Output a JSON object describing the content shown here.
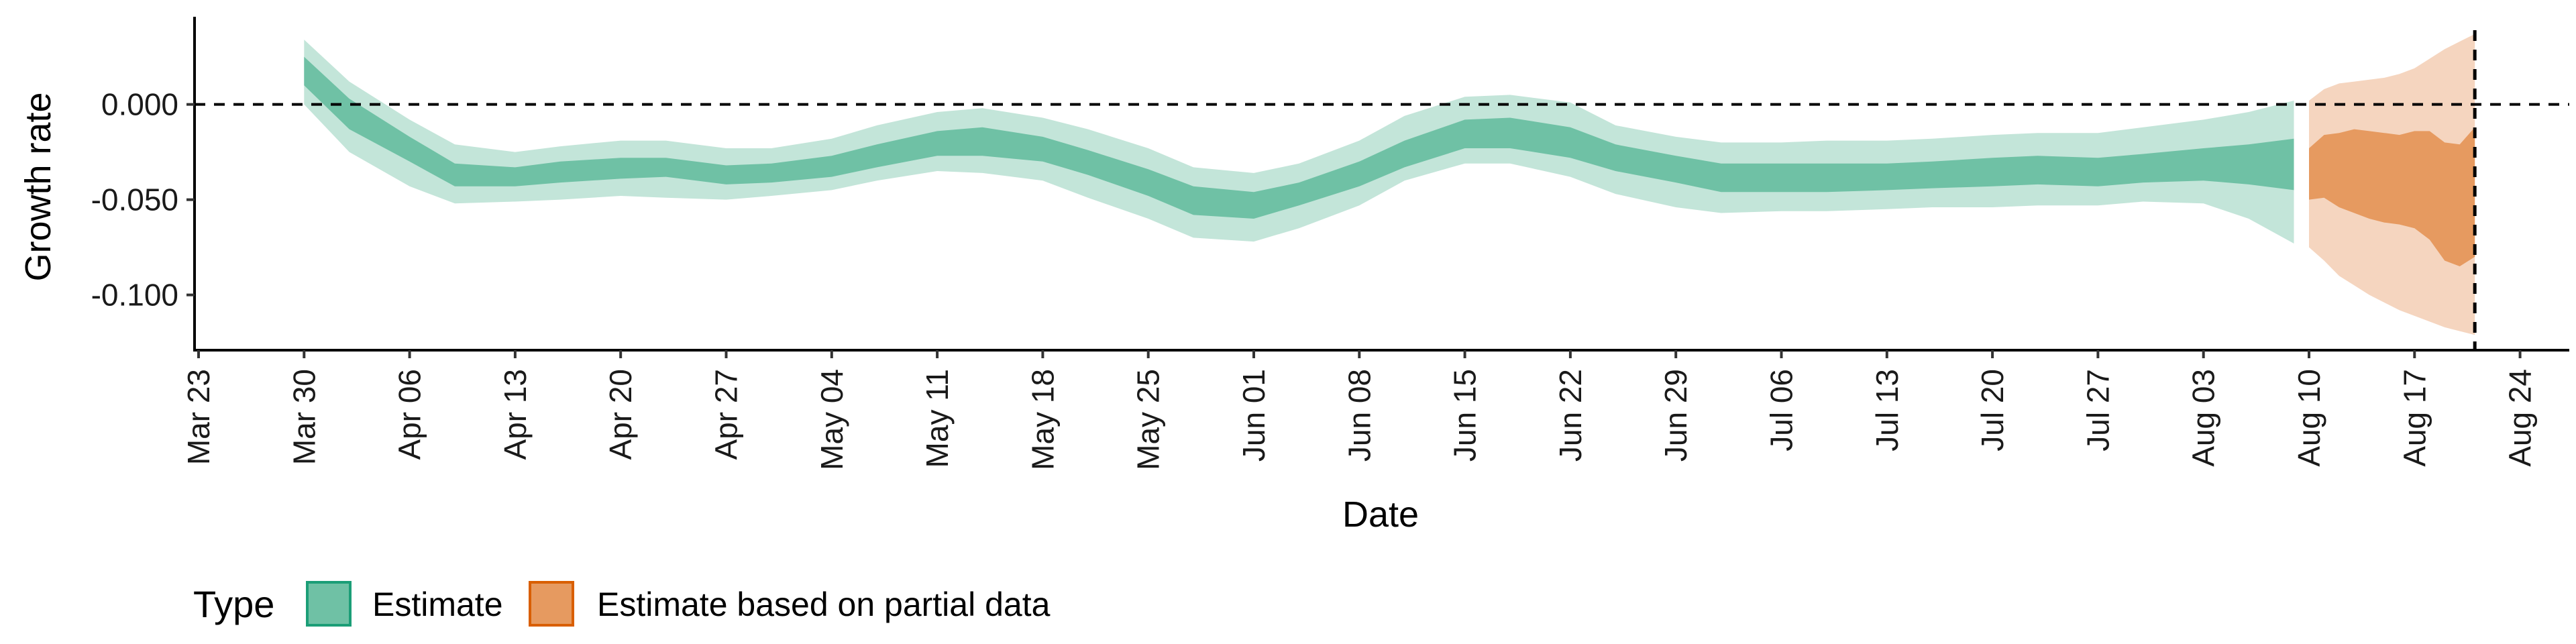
{
  "chart_data": {
    "type": "area",
    "title": "",
    "xlabel": "Date",
    "ylabel": "Growth rate",
    "x_ticks": [
      "Mar 23",
      "Mar 30",
      "Apr 06",
      "Apr 13",
      "Apr 20",
      "Apr 27",
      "May 04",
      "May 11",
      "May 18",
      "May 25",
      "Jun 01",
      "Jun 08",
      "Jun 15",
      "Jun 22",
      "Jun 29",
      "Jul 06",
      "Jul 13",
      "Jul 20",
      "Jul 27",
      "Aug 03",
      "Aug 10",
      "Aug 17",
      "Aug 24"
    ],
    "y_ticks": [
      "0.000",
      "-0.050",
      "-0.100"
    ],
    "ylim": [
      -0.129,
      0.046
    ],
    "xlim": [
      "Mar 23",
      "Aug 27"
    ],
    "reference_line_y": 0.0,
    "vertical_line_x": "Aug 21",
    "legend": {
      "title": "Type",
      "position": "bottom",
      "items": [
        {
          "label": "Estimate",
          "fill": "#6fc1a5",
          "border": "#1b9e77"
        },
        {
          "label": "Estimate based on partial data",
          "fill": "#e69a60",
          "border": "#d95f02"
        }
      ]
    },
    "colors": {
      "estimate_inner": "#6fc1a5",
      "estimate_outer": "#c3e5d9",
      "partial_inner": "#e69a60",
      "partial_outer": "#f5d5bf"
    },
    "series": [
      {
        "name": "Estimate",
        "x": [
          "Mar 30",
          "Apr 02",
          "Apr 06",
          "Apr 09",
          "Apr 13",
          "Apr 16",
          "Apr 20",
          "Apr 23",
          "Apr 27",
          "Apr 30",
          "May 04",
          "May 07",
          "May 11",
          "May 14",
          "May 18",
          "May 21",
          "May 25",
          "May 28",
          "Jun 01",
          "Jun 04",
          "Jun 08",
          "Jun 11",
          "Jun 15",
          "Jun 18",
          "Jun 22",
          "Jun 25",
          "Jun 29",
          "Jul 02",
          "Jul 06",
          "Jul 09",
          "Jul 13",
          "Jul 16",
          "Jul 20",
          "Jul 23",
          "Jul 27",
          "Jul 30",
          "Aug 03",
          "Aug 06",
          "Aug 09"
        ],
        "inner_low": [
          0.01,
          -0.013,
          -0.03,
          -0.043,
          -0.043,
          -0.041,
          -0.039,
          -0.038,
          -0.042,
          -0.041,
          -0.038,
          -0.033,
          -0.027,
          -0.027,
          -0.03,
          -0.037,
          -0.048,
          -0.058,
          -0.06,
          -0.053,
          -0.043,
          -0.033,
          -0.023,
          -0.023,
          -0.028,
          -0.035,
          -0.041,
          -0.046,
          -0.046,
          -0.046,
          -0.045,
          -0.044,
          -0.043,
          -0.042,
          -0.043,
          -0.041,
          -0.04,
          -0.042,
          -0.045
        ],
        "inner_high": [
          0.025,
          0.003,
          -0.017,
          -0.031,
          -0.033,
          -0.03,
          -0.028,
          -0.028,
          -0.032,
          -0.031,
          -0.027,
          -0.021,
          -0.014,
          -0.012,
          -0.017,
          -0.024,
          -0.034,
          -0.043,
          -0.046,
          -0.041,
          -0.03,
          -0.019,
          -0.008,
          -0.007,
          -0.012,
          -0.021,
          -0.027,
          -0.031,
          -0.031,
          -0.031,
          -0.031,
          -0.03,
          -0.028,
          -0.027,
          -0.028,
          -0.026,
          -0.023,
          -0.021,
          -0.018
        ],
        "outer_low": [
          0.0,
          -0.025,
          -0.043,
          -0.052,
          -0.051,
          -0.05,
          -0.048,
          -0.049,
          -0.05,
          -0.048,
          -0.045,
          -0.04,
          -0.035,
          -0.036,
          -0.04,
          -0.049,
          -0.06,
          -0.07,
          -0.072,
          -0.065,
          -0.053,
          -0.04,
          -0.031,
          -0.031,
          -0.038,
          -0.047,
          -0.054,
          -0.057,
          -0.056,
          -0.056,
          -0.055,
          -0.054,
          -0.054,
          -0.053,
          -0.053,
          -0.051,
          -0.052,
          -0.06,
          -0.073
        ],
        "outer_high": [
          0.034,
          0.012,
          -0.008,
          -0.021,
          -0.025,
          -0.022,
          -0.019,
          -0.019,
          -0.023,
          -0.023,
          -0.018,
          -0.011,
          -0.004,
          -0.002,
          -0.007,
          -0.013,
          -0.023,
          -0.033,
          -0.036,
          -0.031,
          -0.019,
          -0.006,
          0.004,
          0.005,
          0.001,
          -0.011,
          -0.017,
          -0.02,
          -0.02,
          -0.019,
          -0.019,
          -0.018,
          -0.016,
          -0.015,
          -0.015,
          -0.012,
          -0.008,
          -0.004,
          0.002
        ]
      },
      {
        "name": "Estimate based on partial data",
        "x": [
          "Aug 10",
          "Aug 11",
          "Aug 12",
          "Aug 13",
          "Aug 14",
          "Aug 15",
          "Aug 16",
          "Aug 17",
          "Aug 18",
          "Aug 19",
          "Aug 20",
          "Aug 21"
        ],
        "inner_low": [
          -0.05,
          -0.049,
          -0.054,
          -0.057,
          -0.06,
          -0.062,
          -0.063,
          -0.065,
          -0.071,
          -0.082,
          -0.085,
          -0.08
        ],
        "inner_high": [
          -0.023,
          -0.016,
          -0.015,
          -0.013,
          -0.014,
          -0.015,
          -0.016,
          -0.014,
          -0.014,
          -0.02,
          -0.021,
          -0.012
        ],
        "outer_low": [
          -0.075,
          -0.082,
          -0.09,
          -0.095,
          -0.1,
          -0.104,
          -0.108,
          -0.111,
          -0.114,
          -0.117,
          -0.119,
          -0.121
        ],
        "outer_high": [
          0.002,
          0.008,
          0.011,
          0.012,
          0.013,
          0.014,
          0.016,
          0.019,
          0.024,
          0.029,
          0.033,
          0.037
        ]
      }
    ]
  }
}
